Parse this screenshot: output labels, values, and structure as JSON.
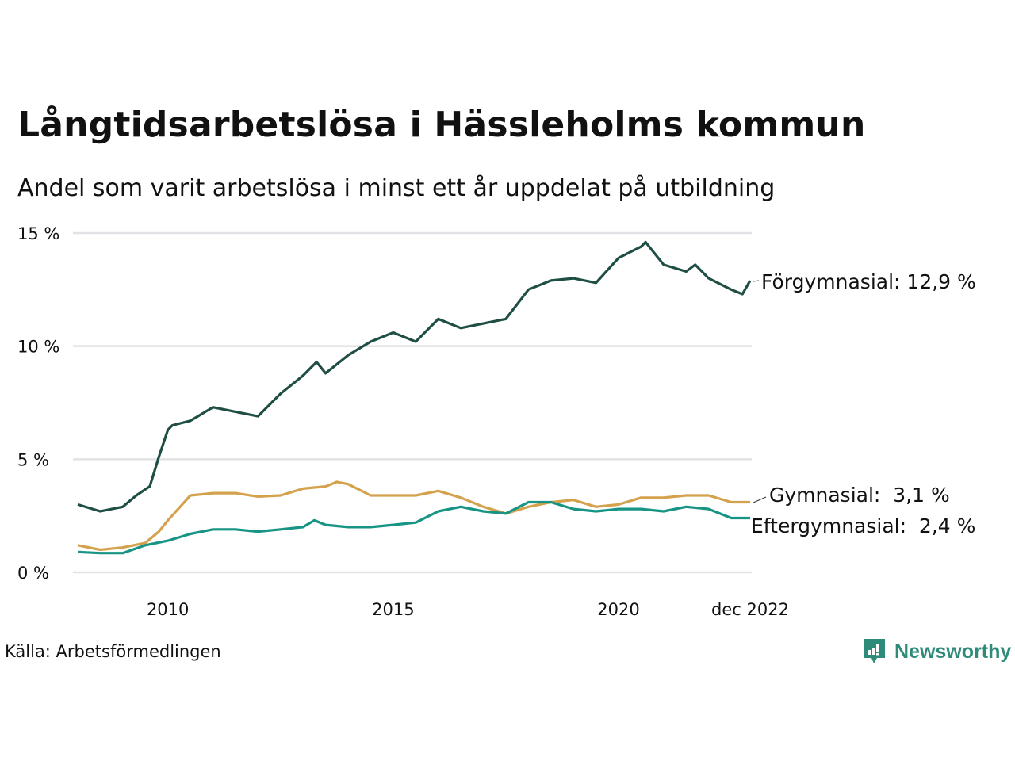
{
  "chart_data": {
    "type": "line",
    "title": "Långtidsarbetslösa i Hässleholms kommun",
    "subtitle": "Andel som varit arbetslösa i minst ett år uppdelat på utbildning",
    "xlabel": "",
    "ylabel": "",
    "ylim": [
      0,
      15
    ],
    "xlim": [
      2008.0,
      2022.92
    ],
    "yticks": [
      {
        "value": 0,
        "label": "0 %"
      },
      {
        "value": 5,
        "label": "5 %"
      },
      {
        "value": 10,
        "label": "10 %"
      },
      {
        "value": 15,
        "label": "15 %"
      }
    ],
    "xticks": [
      {
        "value": 2010,
        "label": "2010"
      },
      {
        "value": 2015,
        "label": "2015"
      },
      {
        "value": 2020,
        "label": "2020"
      },
      {
        "value": 2022.92,
        "label": "dec 2022"
      }
    ],
    "grid": true,
    "series": [
      {
        "name": "Förgymnasial",
        "color": "#1f4e45",
        "end_label": "Förgymnasial: 12,9 %",
        "x": [
          2008.0,
          2008.5,
          2009.0,
          2009.3,
          2009.6,
          2009.8,
          2010.0,
          2010.1,
          2010.5,
          2011.0,
          2011.5,
          2012.0,
          2012.5,
          2013.0,
          2013.3,
          2013.5,
          2014.0,
          2014.5,
          2015.0,
          2015.5,
          2016.0,
          2016.5,
          2017.0,
          2017.5,
          2018.0,
          2018.5,
          2019.0,
          2019.5,
          2020.0,
          2020.5,
          2020.6,
          2021.0,
          2021.5,
          2021.7,
          2022.0,
          2022.5,
          2022.75,
          2022.92
        ],
        "values": [
          3.0,
          2.7,
          2.9,
          3.4,
          3.8,
          5.1,
          6.3,
          6.5,
          6.7,
          7.3,
          7.1,
          6.9,
          7.9,
          8.7,
          9.3,
          8.8,
          9.6,
          10.2,
          10.6,
          10.2,
          11.2,
          10.8,
          11.0,
          11.2,
          12.5,
          12.9,
          13.0,
          12.8,
          13.9,
          14.4,
          14.6,
          13.6,
          13.3,
          13.6,
          13.0,
          12.5,
          12.3,
          12.9
        ]
      },
      {
        "name": "Gymnasial",
        "color": "#d4a24c",
        "end_label": "Gymnasial:  3,1 %",
        "x": [
          2008.0,
          2008.5,
          2009.0,
          2009.5,
          2009.8,
          2010.0,
          2010.5,
          2011.0,
          2011.5,
          2012.0,
          2012.5,
          2013.0,
          2013.5,
          2013.75,
          2014.0,
          2014.5,
          2015.0,
          2015.5,
          2016.0,
          2016.5,
          2017.0,
          2017.5,
          2018.0,
          2018.5,
          2019.0,
          2019.5,
          2020.0,
          2020.5,
          2021.0,
          2021.5,
          2022.0,
          2022.5,
          2022.92
        ],
        "values": [
          1.2,
          1.0,
          1.1,
          1.3,
          1.8,
          2.3,
          3.4,
          3.5,
          3.5,
          3.35,
          3.4,
          3.7,
          3.8,
          4.0,
          3.9,
          3.4,
          3.4,
          3.4,
          3.6,
          3.3,
          2.9,
          2.6,
          2.9,
          3.1,
          3.2,
          2.9,
          3.0,
          3.3,
          3.3,
          3.4,
          3.4,
          3.1,
          3.1
        ]
      },
      {
        "name": "Eftergymnasial",
        "color": "#179484",
        "end_label": "Eftergymnasial:  2,4 %",
        "x": [
          2008.0,
          2008.5,
          2009.0,
          2009.5,
          2010.0,
          2010.5,
          2011.0,
          2011.5,
          2012.0,
          2012.5,
          2013.0,
          2013.25,
          2013.5,
          2014.0,
          2014.5,
          2015.0,
          2015.5,
          2016.0,
          2016.5,
          2017.0,
          2017.5,
          2018.0,
          2018.5,
          2019.0,
          2019.5,
          2020.0,
          2020.5,
          2021.0,
          2021.5,
          2022.0,
          2022.5,
          2022.92
        ],
        "values": [
          0.9,
          0.85,
          0.85,
          1.2,
          1.4,
          1.7,
          1.9,
          1.9,
          1.8,
          1.9,
          2.0,
          2.3,
          2.1,
          2.0,
          2.0,
          2.1,
          2.2,
          2.7,
          2.9,
          2.7,
          2.6,
          3.1,
          3.1,
          2.8,
          2.7,
          2.8,
          2.8,
          2.7,
          2.9,
          2.8,
          2.4,
          2.4
        ]
      }
    ]
  },
  "source": "Källa: Arbetsförmedlingen",
  "brand": "Newsworthy"
}
